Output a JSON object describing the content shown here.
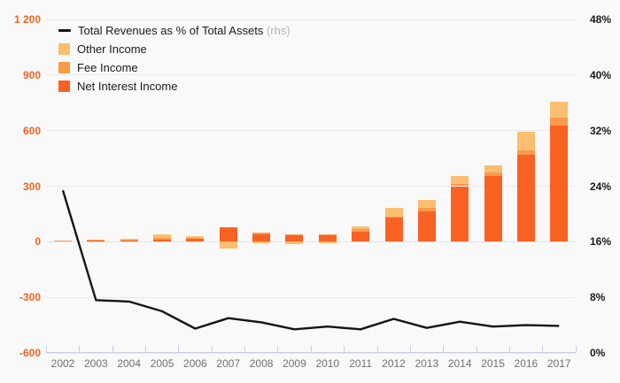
{
  "chart_data": {
    "type": "bar",
    "title": "",
    "categories": [
      "2002",
      "2003",
      "2004",
      "2005",
      "2006",
      "2007",
      "2008",
      "2009",
      "2010",
      "2011",
      "2012",
      "2013",
      "2014",
      "2015",
      "2016",
      "2017"
    ],
    "series": [
      {
        "name": "Net Interest Income",
        "color": "#fa6223",
        "values": [
          4,
          7,
          10,
          10,
          18,
          78,
          42,
          33,
          35,
          55,
          130,
          165,
          300,
          357,
          468,
          628
        ]
      },
      {
        "name": "Fee Income",
        "color": "#fa9a4b",
        "values": [
          1,
          2,
          3,
          10,
          5,
          0,
          6,
          6,
          6,
          13,
          4,
          19,
          13,
          19,
          27,
          43
        ]
      },
      {
        "name": "Other Income",
        "color": "#fcbe70",
        "values": [
          0,
          0,
          1,
          19,
          8,
          -35,
          -8,
          -11,
          -10,
          13,
          48,
          41,
          40,
          37,
          99,
          85
        ]
      }
    ],
    "line_series": {
      "name": "Total Revenues as % of Total Assets",
      "suffix": " (rhs)",
      "color": "#141414",
      "axis": "right",
      "values": [
        23.4,
        7.6,
        7.4,
        6.0,
        3.5,
        5.0,
        4.4,
        3.4,
        3.8,
        3.4,
        4.9,
        3.6,
        4.5,
        3.8,
        4.0,
        3.9
      ]
    },
    "left_axis": {
      "tick_labels": [
        "1 200",
        "900",
        "600",
        "300",
        "0",
        "-300",
        "-600"
      ],
      "tick_values": [
        1200,
        900,
        600,
        300,
        0,
        -300,
        -600
      ],
      "min": -600,
      "max": 1200,
      "label_color": "#f4641e"
    },
    "right_axis": {
      "tick_labels": [
        "48%",
        "40%",
        "32%",
        "24%",
        "16%",
        "8%",
        "0%"
      ],
      "tick_values": [
        48,
        40,
        32,
        24,
        16,
        8,
        0
      ],
      "min": 0,
      "max": 48,
      "label_color": "#1a1a1a"
    },
    "grid": true,
    "legend_position": "top-left"
  },
  "colors": {
    "background": "#f9f9f9",
    "gridline": "#e9e9ea",
    "x_axis": "#c9cee3",
    "x_label": "#6e7175",
    "rhs_note": "#b4b4b6"
  }
}
